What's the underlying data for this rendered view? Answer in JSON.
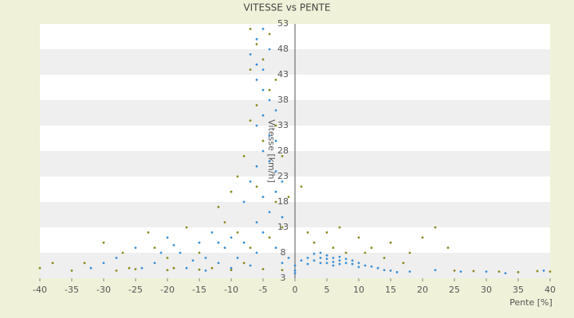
{
  "chart_data": {
    "type": "scatter",
    "title": "VITESSE vs PENTE",
    "x_label": "Pente [%]",
    "y_label": "Vitesse [km/h]",
    "xlim": [
      -40,
      40
    ],
    "xticks": [
      -40,
      -35,
      -30,
      -25,
      -20,
      -15,
      -10,
      -5,
      0,
      5,
      10,
      15,
      20,
      25,
      30,
      35,
      40
    ],
    "ylim": [
      3,
      53
    ],
    "yticks": [
      3,
      8,
      13,
      18,
      23,
      28,
      33,
      38,
      43,
      48,
      53
    ],
    "grid": true,
    "series": [
      {
        "color": "#3a8fd8",
        "x": [
          2,
          3,
          4,
          5,
          6,
          7,
          8,
          9,
          10,
          11,
          12,
          4,
          5,
          6,
          7,
          8,
          3,
          1,
          2,
          9,
          10,
          13,
          14,
          15,
          16,
          18,
          6,
          5,
          4,
          7,
          -6,
          -5,
          -7,
          -6,
          -5,
          -4,
          -6,
          -5,
          -4,
          -5,
          -3,
          -6,
          -4,
          -3,
          -5,
          -4,
          -3,
          -6,
          -2,
          -7,
          -3,
          -5,
          -8,
          -4,
          -2,
          -6,
          -28,
          -25,
          -22,
          -20,
          -18,
          -17,
          -15,
          -14,
          -13,
          -12,
          -11,
          -10,
          -9,
          -8,
          -7,
          -6,
          -5,
          -16,
          -19,
          -24,
          -21,
          -10,
          -12,
          -14,
          -3,
          -2,
          -1,
          0,
          0,
          0,
          -30,
          -32,
          22,
          26,
          33,
          39,
          30
        ],
        "values": [
          7,
          6.5,
          7,
          6.8,
          6.2,
          6.5,
          6,
          5.8,
          6,
          5.5,
          5.3,
          6,
          7.5,
          7,
          5.8,
          6.8,
          7.8,
          6.5,
          5.8,
          6.5,
          5.2,
          5,
          4.6,
          4.5,
          4.2,
          4.3,
          5.5,
          6,
          8,
          7.2,
          50,
          52,
          47,
          45,
          44,
          48,
          42,
          40,
          38,
          35,
          36,
          33,
          31,
          30,
          28,
          26,
          24,
          25,
          22,
          22,
          20,
          19,
          18,
          16,
          15,
          14,
          7,
          9,
          6,
          11,
          8,
          5,
          10,
          7,
          12,
          6,
          9,
          11,
          7,
          10,
          5.5,
          8,
          12,
          6.5,
          9.5,
          5,
          8,
          5,
          10,
          4.5,
          9,
          6,
          7,
          4.5,
          5.5,
          4,
          6,
          5,
          4.6,
          4.3,
          4,
          4.5,
          4.3
        ]
      },
      {
        "color": "#8c8a1e",
        "x": [
          -7,
          -4,
          -6,
          -5,
          -7,
          -3,
          -4,
          -6,
          -7,
          -3,
          -5,
          -2,
          -8,
          -9,
          -6,
          -10,
          -3,
          -1,
          -12,
          -2,
          1,
          -30,
          -27,
          -23,
          -20,
          -17,
          -15,
          -13,
          -11,
          -9,
          -7,
          -4,
          -26,
          -19,
          -8,
          -22,
          3,
          5,
          7,
          10,
          12,
          15,
          18,
          20,
          22,
          24,
          8,
          2,
          14,
          17,
          11,
          6,
          -40,
          -38,
          -35,
          -33,
          -28,
          -25,
          -20,
          -15,
          -10,
          -5,
          -2,
          25,
          28,
          32,
          35,
          38,
          40
        ],
        "values": [
          52,
          51,
          49,
          46,
          44,
          42,
          40,
          37,
          34,
          33,
          30,
          27,
          27,
          23,
          21,
          20,
          18,
          19,
          17,
          13,
          21,
          10,
          8,
          12,
          7,
          13,
          8,
          5,
          14,
          12,
          9,
          11,
          5,
          5,
          6,
          9,
          10,
          12,
          13,
          11,
          9,
          10,
          8,
          11,
          13,
          9,
          8,
          12,
          7,
          6,
          8,
          9,
          5,
          6,
          4.5,
          6,
          4.5,
          4.8,
          4.6,
          4.7,
          4.6,
          4.8,
          4.6,
          4.5,
          4.4,
          4.3,
          4.2,
          4.4,
          4.3
        ]
      }
    ]
  }
}
